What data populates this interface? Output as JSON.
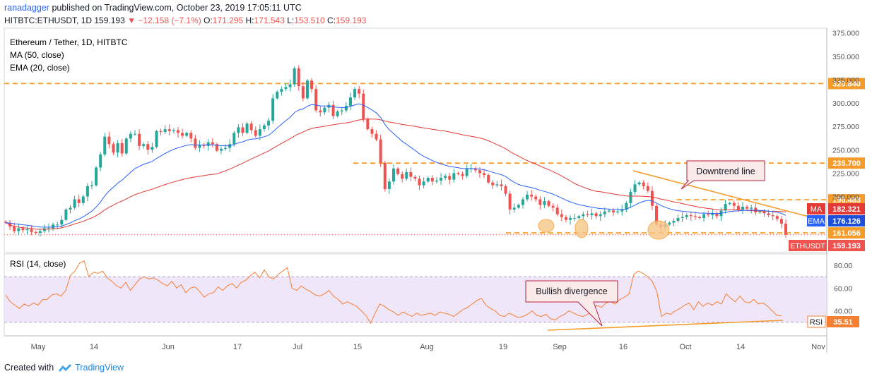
{
  "header": {
    "author": "ranadagger",
    "published_text": "published on TradingView.com, October 23, 2019 17:05:11 UTC",
    "symbol": "HITBTC:ETHUSDT,",
    "tf": "1D",
    "last": "159.193",
    "change": "−12.158 (−7.1%)",
    "o_label": "O:",
    "o": "171.295",
    "h_label": "H:",
    "h": "171.543",
    "l_label": "L:",
    "l": "153.510",
    "c_label": "C:",
    "c": "159.193"
  },
  "legend": {
    "title": "Ethereum / Tether, 1D, HITBTC",
    "ma": "MA (50, close)",
    "ema": "EMA (20, close)",
    "rsi": "RSI (14, close)"
  },
  "annotations": {
    "downtrend": "Downtrend line",
    "divergence": "Bullish divergence"
  },
  "footer": {
    "created": "Created with",
    "brand": "TradingView"
  },
  "colors": {
    "up": "#26a69a",
    "down": "#ef5350",
    "ma": "#e53935",
    "ema": "#2962ff",
    "orange": "#f59b2a",
    "rsi": "#f57f32",
    "rsi_band": "#e9dcf7"
  },
  "chart_data": {
    "type": "candlestick",
    "price_axis": {
      "min": 140,
      "max": 380,
      "ticks": [
        "375.000",
        "350.000",
        "325.000",
        "300.000",
        "275.000",
        "250.000",
        "225.000",
        "200.000"
      ]
    },
    "x_axis_ticks": [
      "May",
      "14",
      "Jun",
      "17",
      "Jul",
      "15",
      "Aug",
      "19",
      "Sep",
      "16",
      "Oct",
      "14",
      "Nov"
    ],
    "levels": [
      {
        "label": "320.840",
        "value": 320.84
      },
      {
        "label": "235.700",
        "value": 235.7
      },
      {
        "label": "196.483",
        "value": 196.483
      },
      {
        "label": "161.056",
        "value": 161.056
      }
    ],
    "badges": [
      {
        "label": "MA",
        "value": "182.321",
        "price": 182.321
      },
      {
        "label": "EMA",
        "value": "176.126",
        "price": 176.126
      },
      {
        "label": "ETHUSDT",
        "value": "159.193",
        "price": 159.193
      }
    ],
    "closes": [
      172,
      168,
      163,
      166,
      164,
      165,
      162,
      161,
      163,
      166,
      166,
      170,
      170,
      175,
      186,
      188,
      197,
      193,
      200,
      211,
      212,
      231,
      245,
      264,
      256,
      247,
      257,
      246,
      262,
      267,
      267,
      254,
      256,
      250,
      253,
      270,
      269,
      272,
      270,
      271,
      268,
      265,
      268,
      262,
      252,
      255,
      254,
      258,
      256,
      249,
      251,
      252,
      256,
      268,
      274,
      268,
      278,
      271,
      265,
      272,
      276,
      281,
      305,
      312,
      315,
      317,
      320,
      337,
      318,
      305,
      324,
      315,
      292,
      290,
      295,
      298,
      286,
      291,
      292,
      297,
      306,
      315,
      310,
      283,
      272,
      267,
      261,
      236,
      208,
      216,
      230,
      224,
      219,
      226,
      221,
      219,
      212,
      216,
      220,
      216,
      217,
      220,
      222,
      218,
      225,
      224,
      222,
      230,
      230,
      228,
      225,
      223,
      215,
      212,
      213,
      211,
      203,
      186,
      188,
      191,
      197,
      202,
      200,
      197,
      191,
      195,
      190,
      188,
      181,
      178,
      175,
      177,
      177,
      179,
      181,
      180,
      182,
      179,
      181,
      184,
      185,
      183,
      184,
      186,
      193,
      205,
      213,
      215,
      211,
      206,
      190,
      170,
      167,
      170,
      172,
      174,
      177,
      178,
      180,
      179,
      178,
      177,
      181,
      180,
      182,
      179,
      185,
      192,
      193,
      190,
      186,
      189,
      187,
      188,
      183,
      184,
      182,
      180,
      179,
      176,
      171,
      159.193
    ],
    "rsi": {
      "levels": [
        30,
        70
      ],
      "axis_ticks": [
        "80.00",
        "60.00",
        "40.00"
      ],
      "current_label": "RSI",
      "current": "35.51",
      "values": [
        54,
        48,
        45,
        42,
        46,
        44,
        47,
        45,
        50,
        50,
        54,
        55,
        53,
        58,
        71,
        75,
        82,
        84,
        70,
        74,
        73,
        75,
        69,
        66,
        62,
        60,
        65,
        58,
        63,
        68,
        70,
        68,
        69,
        67,
        64,
        62,
        66,
        60,
        63,
        56,
        60,
        61,
        57,
        52,
        55,
        56,
        61,
        58,
        62,
        64,
        60,
        65,
        67,
        71,
        74,
        69,
        76,
        70,
        68,
        72,
        75,
        78,
        60,
        58,
        62,
        59,
        57,
        54,
        53,
        55,
        58,
        53,
        50,
        46,
        48,
        46,
        44,
        40,
        36,
        29,
        38,
        46,
        44,
        41,
        39,
        36,
        39,
        37,
        35,
        38,
        36,
        37,
        38,
        36,
        39,
        38,
        37,
        35,
        38,
        41,
        43,
        46,
        49,
        51,
        45,
        42,
        40,
        36,
        35,
        38,
        36,
        34,
        35,
        37,
        40,
        36,
        35,
        37,
        33,
        32,
        35,
        37,
        40,
        38,
        36,
        35,
        37,
        39,
        45,
        43,
        47,
        48,
        46,
        50,
        52,
        55,
        72,
        75,
        73,
        70,
        66,
        57,
        35,
        38,
        37,
        40,
        42,
        45,
        47,
        41,
        48,
        44,
        47,
        45,
        48,
        46,
        55,
        51,
        48,
        53,
        48,
        47,
        50,
        46,
        47,
        44,
        40,
        36,
        35.51
      ]
    }
  }
}
